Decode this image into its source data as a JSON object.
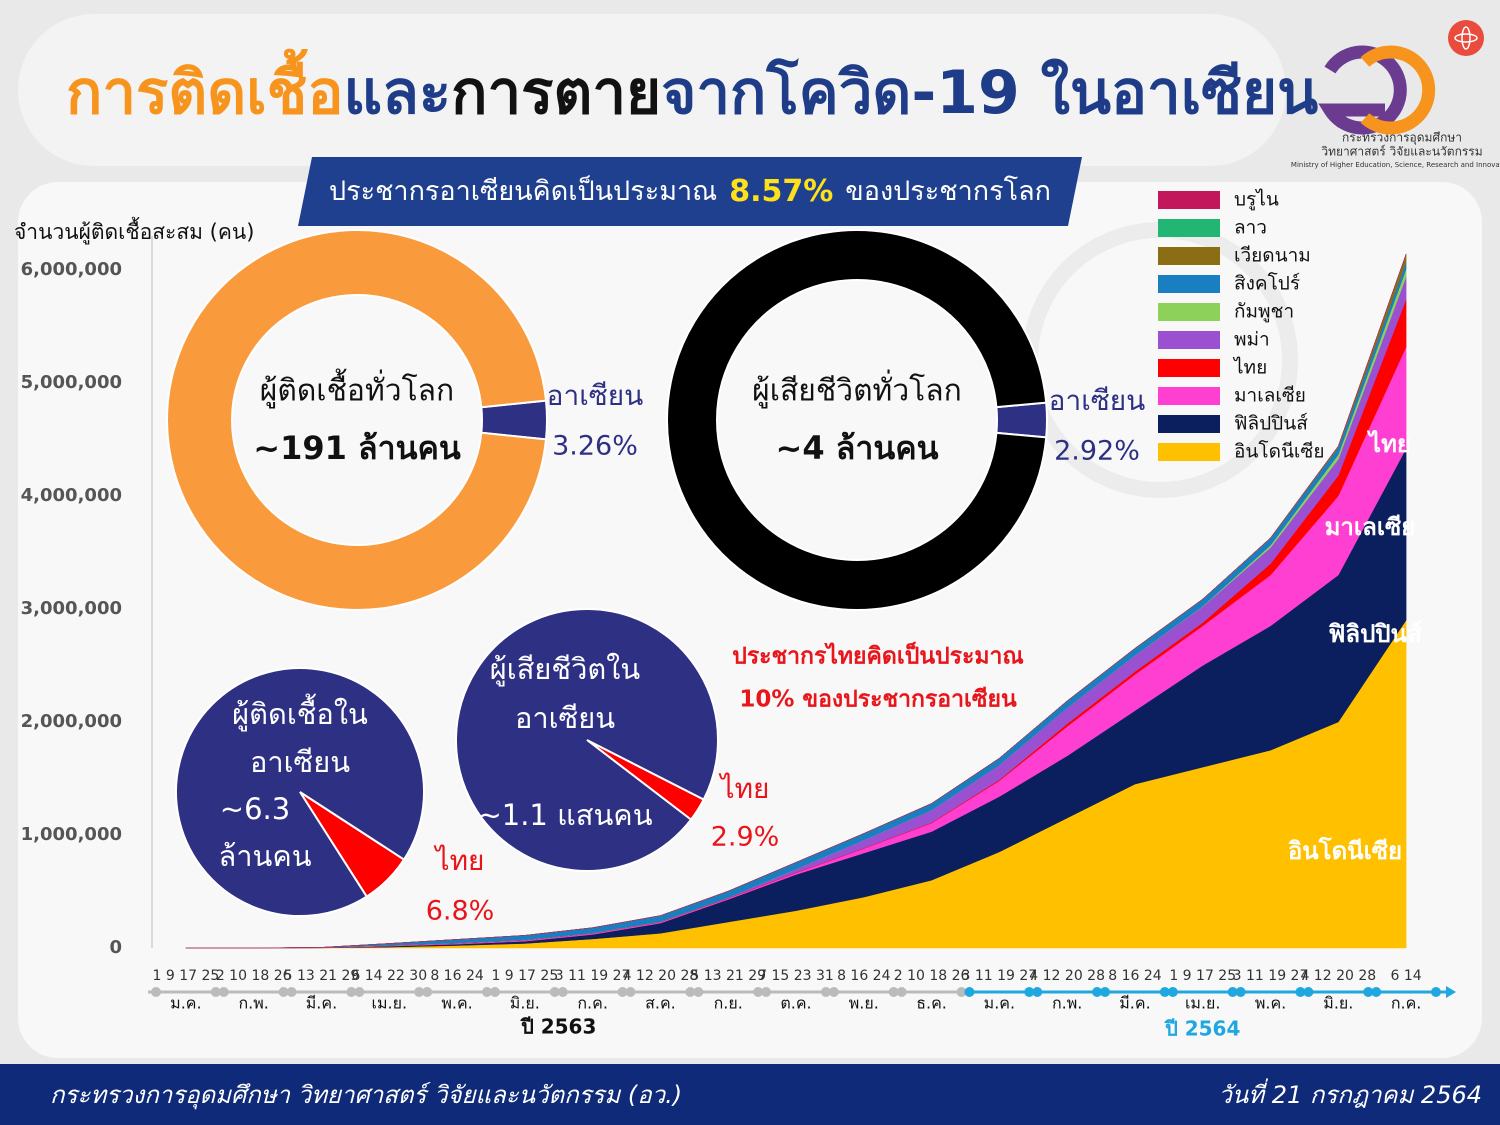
{
  "header": {
    "title_parts": [
      "การติดเชื้อ",
      "และ",
      "การตาย",
      "จากโควิด-19 ในอาเซียน"
    ],
    "banner_parts": [
      "ประชากรอาเซียนคิดเป็นประมาณ",
      "8.57%",
      "ของประชากรโลก"
    ],
    "note_lines": [
      "ประชากรไทยคิดเป็นประมาณ",
      "10% ของประชากรอาเซียน"
    ],
    "logo_lines": [
      "กระทรวงการอุดมศึกษา",
      "วิทยาศาสตร์ วิจัยและนวัตกรรม",
      "Ministry of Higher Education, Science, Research and Innovation"
    ]
  },
  "footer": {
    "left": "กระทรวงการอุดมศึกษา วิทยาศาสตร์ วิจัยและนวัตกรรม (อว.)",
    "right": "วันที่ 21 กรกฎาคม 2564"
  },
  "chart_data": [
    {
      "type": "area",
      "stacked": true,
      "y_label": "จำนวนผู้ติดเชื้อสะสม (คน)",
      "categories": [
        "ม.ค.",
        "ก.พ.",
        "มี.ค.",
        "เม.ย.",
        "พ.ค.",
        "มิ.ย.",
        "ก.ค.",
        "ส.ค.",
        "ก.ย.",
        "ต.ค.",
        "พ.ย.",
        "ธ.ค.",
        "ม.ค.",
        "ก.พ.",
        "มี.ค.",
        "เม.ย.",
        "พ.ค.",
        "มิ.ย.",
        "ก.ค."
      ],
      "x_day_labels": [
        "1 9 17 25",
        "2 10 18 26",
        "5 13 21 29",
        "6 14 22 30",
        "8 16 24",
        "1 9 17 25",
        "3 11 19 27",
        "4 12 20 28",
        "5 13 21 29",
        "7 15 23 31",
        "8 16 24",
        "2 10 18 26",
        "3 11 19 27",
        "4 12 20 28",
        "8 16 24",
        "1 9 17 25",
        "3 11 19 27",
        "4 12 20 28",
        "6 14"
      ],
      "x_year_labels": [
        "ปี 2563",
        "ปี 2564"
      ],
      "ylim": [
        0,
        6300000
      ],
      "yticks": [
        {
          "value": 0,
          "label": "0"
        },
        {
          "value": 1000000,
          "label": "1,000,000"
        },
        {
          "value": 2000000,
          "label": "2,000,000"
        },
        {
          "value": 3000000,
          "label": "3,000,000"
        },
        {
          "value": 4000000,
          "label": "4,000,000"
        },
        {
          "value": 5000000,
          "label": "5,000,000"
        },
        {
          "value": 6000000,
          "label": "6,000,000"
        }
      ],
      "grid": false,
      "legend": "top-right",
      "series": [
        {
          "name": "อินโดนีเซีย",
          "color": "#ffc000",
          "values": [
            0,
            0,
            1000,
            8000,
            22000,
            40000,
            80000,
            130000,
            230000,
            330000,
            450000,
            600000,
            850000,
            1150000,
            1450000,
            1600000,
            1750000,
            2000000,
            2900000
          ]
        },
        {
          "name": "ฟิลิปปินส์",
          "color": "#0b1f5e",
          "values": [
            0,
            0,
            1000,
            8000,
            12000,
            20000,
            40000,
            90000,
            200000,
            320000,
            390000,
            430000,
            490000,
            550000,
            650000,
            900000,
            1100000,
            1300000,
            1520000
          ]
        },
        {
          "name": "มาเลเซีย",
          "color": "#ff3fd2",
          "values": [
            0,
            0,
            2000,
            5000,
            6500,
            8000,
            8600,
            9000,
            9500,
            15000,
            40000,
            75000,
            140000,
            260000,
            320000,
            350000,
            450000,
            700000,
            900000
          ]
        },
        {
          "name": "ไทย",
          "color": "#ff0000",
          "values": [
            0,
            0,
            1000,
            2500,
            3000,
            3100,
            3200,
            3300,
            3400,
            3600,
            3800,
            4300,
            9000,
            24000,
            26000,
            29000,
            100000,
            180000,
            420000
          ]
        },
        {
          "name": "พม่า",
          "color": "#9b4fd1",
          "values": [
            0,
            0,
            0,
            100,
            200,
            300,
            350,
            400,
            2000,
            30000,
            70000,
            110000,
            130000,
            140000,
            142000,
            142000,
            143000,
            145000,
            200000
          ]
        },
        {
          "name": "กัมพูชา",
          "color": "#8ed15a",
          "values": [
            0,
            0,
            0,
            100,
            120,
            130,
            150,
            250,
            270,
            290,
            300,
            350,
            450,
            500,
            1000,
            3000,
            20000,
            40000,
            65000
          ]
        },
        {
          "name": "สิงคโปร์",
          "color": "#1a7fc1",
          "values": [
            0,
            0,
            500,
            16000,
            32000,
            40000,
            47000,
            53000,
            57000,
            57900,
            58000,
            58200,
            58600,
            59800,
            60000,
            60500,
            61000,
            62000,
            63000
          ]
        },
        {
          "name": "เวียดนาม",
          "color": "#8b6d14",
          "values": [
            0,
            0,
            200,
            260,
            320,
            330,
            370,
            640,
            1050,
            1100,
            1250,
            1400,
            1500,
            2300,
            2500,
            2700,
            3500,
            12000,
            70000
          ]
        },
        {
          "name": "ลาว",
          "color": "#22b573",
          "values": [
            0,
            0,
            0,
            19,
            19,
            19,
            19,
            20,
            22,
            23,
            24,
            40,
            45,
            46,
            47,
            50,
            1800,
            2000,
            3000
          ]
        },
        {
          "name": "บรูไน",
          "color": "#c2185b",
          "values": [
            0,
            0,
            100,
            138,
            141,
            141,
            141,
            142,
            145,
            146,
            148,
            150,
            170,
            180,
            200,
            220,
            240,
            250,
            260
          ]
        }
      ]
    },
    {
      "type": "donut",
      "title": "ผู้ติดเชื้อทั่วโลก",
      "total": "~191 ล้านคน",
      "categories": [
        "อาเซียน",
        null
      ],
      "values": [
        3.26,
        96.74
      ],
      "value_labels": [
        "3.26%",
        null
      ],
      "colors": [
        "#2e3083",
        "#f99a3c"
      ]
    },
    {
      "type": "donut",
      "title": "ผู้เสียชีวิตทั่วโลก",
      "total": "~4 ล้านคน",
      "categories": [
        "อาเซียน",
        null
      ],
      "values": [
        2.92,
        97.08
      ],
      "value_labels": [
        "2.92%",
        null
      ],
      "colors": [
        "#2e3083",
        "#000000"
      ]
    },
    {
      "type": "pie",
      "title_lines": [
        "ผู้ติดเชื้อใน",
        "อาเซียน"
      ],
      "total_lines": [
        "~6.3",
        "ล้านคน"
      ],
      "categories": [
        "ไทย",
        null
      ],
      "values": [
        6.8,
        93.2
      ],
      "value_labels": [
        "6.8%",
        null
      ],
      "colors": [
        "#ff0000",
        "#2e3083"
      ]
    },
    {
      "type": "pie",
      "title_lines": [
        "ผู้เสียชีวิตใน",
        "อาเซียน"
      ],
      "total_lines": [
        "~1.1 แสนคน"
      ],
      "categories": [
        "ไทย",
        null
      ],
      "values": [
        2.9,
        97.1
      ],
      "value_labels": [
        "2.9%",
        null
      ],
      "colors": [
        "#ff0000",
        "#2e3083"
      ]
    }
  ]
}
